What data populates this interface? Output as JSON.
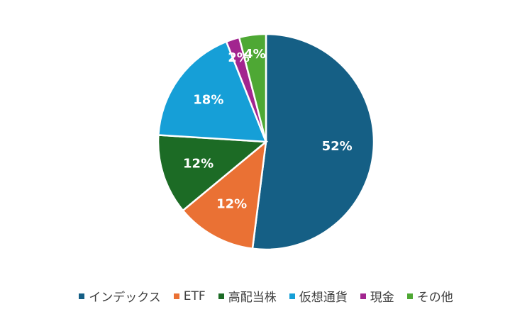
{
  "chart_data": {
    "type": "pie",
    "categories": [
      "インデックス",
      "ETF",
      "高配当株",
      "仮想通貨",
      "現金",
      "その他"
    ],
    "values": [
      52,
      12,
      12,
      18,
      2,
      4
    ],
    "labels": [
      "52%",
      "12%",
      "12%",
      "18%",
      "2%",
      "4%"
    ],
    "colors": [
      "#155f85",
      "#ea7134",
      "#1c6b25",
      "#169fd7",
      "#a2258f",
      "#4ea834"
    ],
    "legend_position": "bottom",
    "start_angle_deg": 0,
    "direction": "clockwise"
  }
}
